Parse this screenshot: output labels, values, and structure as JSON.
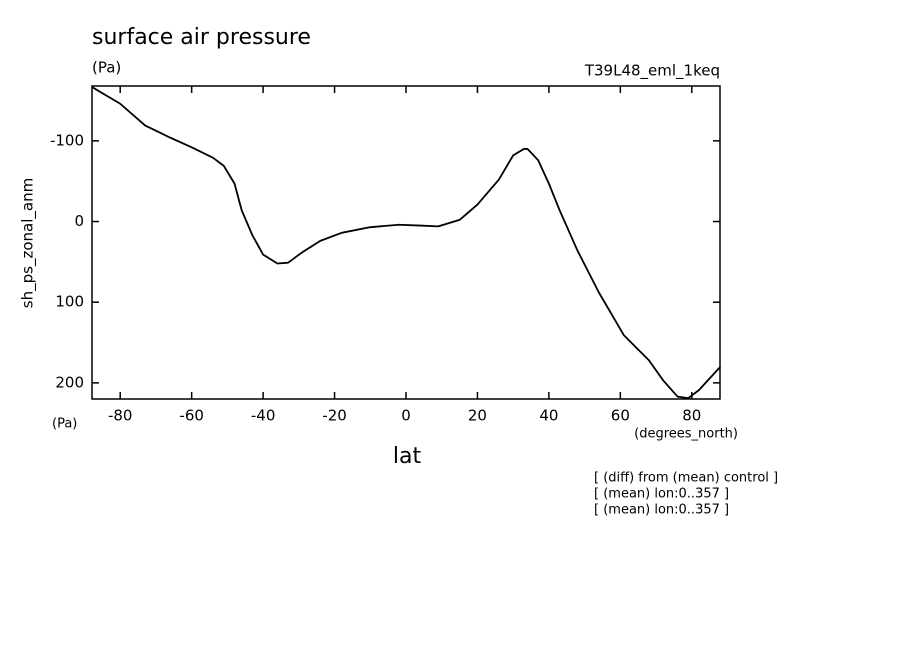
{
  "chart_data": {
    "type": "line",
    "title": "surface air pressure",
    "units": "(Pa)",
    "run_label": "T39L48_eml_1keq",
    "ylabel": "sh_ps_zonal_anm",
    "y_units": "(Pa)",
    "x_units": "(degrees_north)",
    "xlabel": "lat",
    "notes": [
      "[ (diff) from (mean) control ]",
      "[ (mean) lon:0..357 ]",
      "[ (mean) lon:0..357 ]"
    ],
    "x": [
      -88,
      -80,
      -73,
      -66,
      -60,
      -54,
      -51,
      -48,
      -46,
      -43,
      -40,
      -36,
      -33,
      -29,
      -24,
      -18,
      -10,
      -2,
      4,
      9,
      15,
      20,
      26,
      30,
      33,
      34,
      37,
      40,
      43,
      48,
      54,
      61,
      68,
      72,
      76,
      79,
      82,
      88
    ],
    "series": [
      {
        "color": "#000000",
        "values": [
          -167,
          -146,
          -119,
          -104,
          -92,
          -79,
          -69,
          -47,
          -14,
          17,
          41,
          52,
          51,
          38,
          24,
          14,
          7,
          4,
          5,
          6,
          -2,
          -21,
          -52,
          -82,
          -90,
          -90,
          -76,
          -47,
          -14,
          36,
          88,
          141,
          172,
          197,
          217,
          219,
          209,
          180
        ]
      }
    ],
    "xlim": [
      -87.9,
      87.9
    ],
    "xticks": [
      -80,
      -60,
      -40,
      -20,
      0,
      20,
      40,
      60,
      80
    ],
    "ylim": [
      220,
      -168
    ],
    "yticks": [
      -100,
      0,
      100,
      200
    ]
  }
}
